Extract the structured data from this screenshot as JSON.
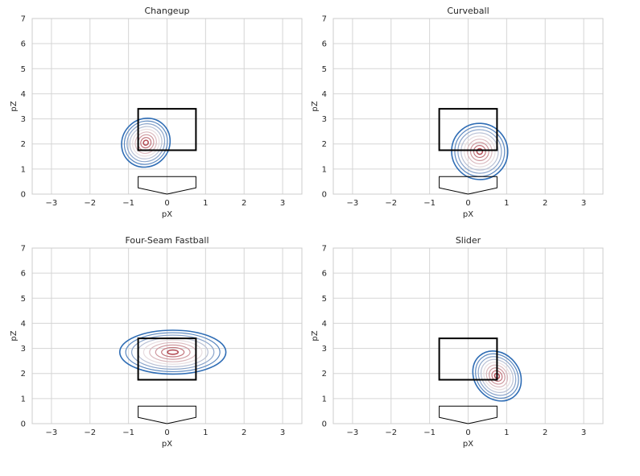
{
  "chart_data": [
    {
      "type": "contour",
      "title": "Changeup",
      "xlabel": "pX",
      "ylabel": "pZ",
      "xlim": [
        -3.5,
        3.5
      ],
      "ylim": [
        0,
        7
      ],
      "xticks": [
        -3,
        -2,
        -1,
        0,
        1,
        2,
        3
      ],
      "yticks": [
        0,
        1,
        2,
        3,
        4,
        5,
        6,
        7
      ],
      "grid": true,
      "density_center": [
        -0.55,
        2.05
      ],
      "density_spread": [
        0.45,
        0.75
      ],
      "density_tilt_deg": -48,
      "density_levels": 9,
      "strike_zone": {
        "x": [
          -0.75,
          0.75
        ],
        "z": [
          1.75,
          3.4
        ]
      },
      "home_plate": [
        [
          -0.75,
          0.7
        ],
        [
          0.75,
          0.7
        ],
        [
          0.75,
          0.25
        ],
        [
          0,
          0
        ],
        [
          -0.75,
          0.25
        ]
      ]
    },
    {
      "type": "contour",
      "title": "Curveball",
      "xlabel": "pX",
      "ylabel": "pZ",
      "xlim": [
        -3.5,
        3.5
      ],
      "ylim": [
        0,
        7
      ],
      "xticks": [
        -3,
        -2,
        -1,
        0,
        1,
        2,
        3
      ],
      "yticks": [
        0,
        1,
        2,
        3,
        4,
        5,
        6,
        7
      ],
      "grid": true,
      "density_center": [
        0.3,
        1.7
      ],
      "density_spread": [
        0.5,
        0.9
      ],
      "density_tilt_deg": -42,
      "density_levels": 9,
      "strike_zone": {
        "x": [
          -0.75,
          0.75
        ],
        "z": [
          1.75,
          3.4
        ]
      },
      "home_plate": [
        [
          -0.75,
          0.7
        ],
        [
          0.75,
          0.7
        ],
        [
          0.75,
          0.25
        ],
        [
          0,
          0
        ],
        [
          -0.75,
          0.25
        ]
      ]
    },
    {
      "type": "contour",
      "title": "Four-Seam Fastball",
      "xlabel": "pX",
      "ylabel": "pZ",
      "xlim": [
        -3.5,
        3.5
      ],
      "ylim": [
        0,
        7
      ],
      "xticks": [
        -3,
        -2,
        -1,
        0,
        1,
        2,
        3
      ],
      "yticks": [
        0,
        1,
        2,
        3,
        4,
        5,
        6,
        7
      ],
      "grid": true,
      "density_center": [
        0.15,
        2.85
      ],
      "density_spread": [
        0.95,
        0.7
      ],
      "density_tilt_deg": 0,
      "density_levels": 9,
      "strike_zone": {
        "x": [
          -0.75,
          0.75
        ],
        "z": [
          1.75,
          3.4
        ]
      },
      "home_plate": [
        [
          -0.75,
          0.7
        ],
        [
          0.75,
          0.7
        ],
        [
          0.75,
          0.25
        ],
        [
          0,
          0
        ],
        [
          -0.75,
          0.25
        ]
      ]
    },
    {
      "type": "contour",
      "title": "Slider",
      "xlabel": "pX",
      "ylabel": "pZ",
      "xlim": [
        -3.5,
        3.5
      ],
      "ylim": [
        0,
        7
      ],
      "xticks": [
        -3,
        -2,
        -1,
        0,
        1,
        2,
        3
      ],
      "yticks": [
        0,
        1,
        2,
        3,
        4,
        5,
        6,
        7
      ],
      "grid": true,
      "density_center": [
        0.75,
        1.9
      ],
      "density_spread": [
        0.4,
        0.85
      ],
      "density_tilt_deg": -40,
      "density_levels": 9,
      "strike_zone": {
        "x": [
          -0.75,
          0.75
        ],
        "z": [
          1.75,
          3.4
        ]
      },
      "home_plate": [
        [
          -0.75,
          0.7
        ],
        [
          0.75,
          0.7
        ],
        [
          0.75,
          0.25
        ],
        [
          0,
          0
        ],
        [
          -0.75,
          0.25
        ]
      ]
    }
  ],
  "colors": {
    "grid": "#d5d5d5",
    "axes_border": "#cccccc",
    "text": "#262626",
    "zone": "#000000",
    "contour_outer": "#2f6db5",
    "contour_mid": "#e7dde0",
    "contour_inner": "#b5515a"
  }
}
